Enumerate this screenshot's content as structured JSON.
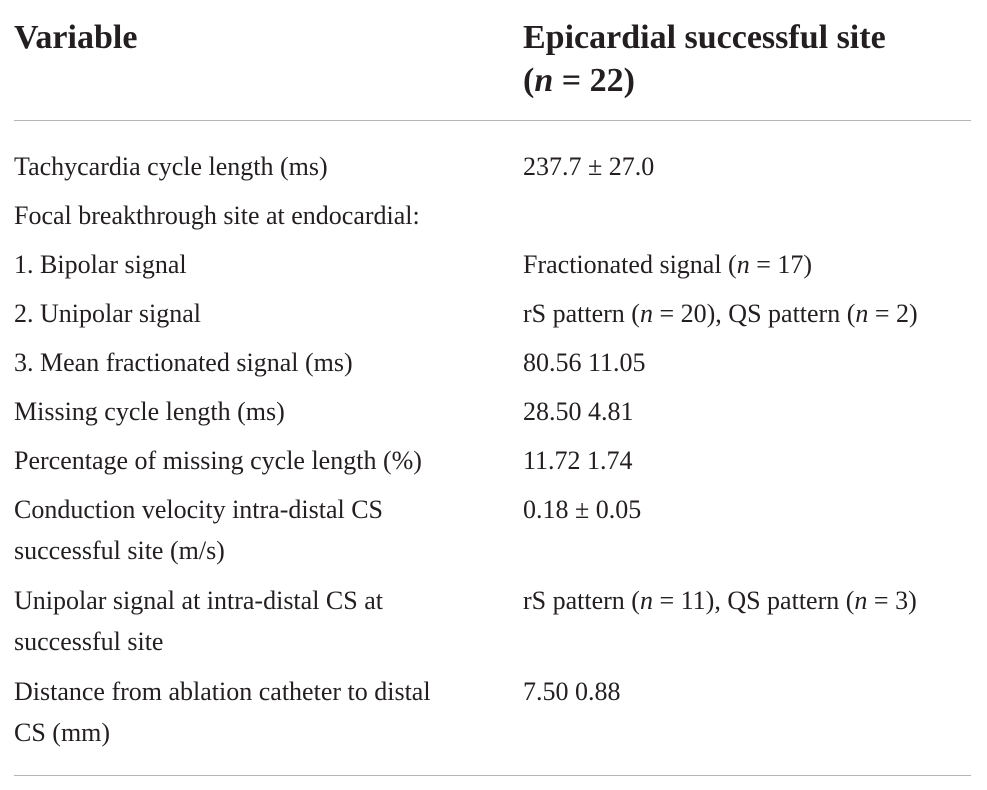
{
  "table": {
    "header": {
      "variable": "Variable",
      "site_line1": "Epicardial successful site",
      "site_line2_open": "(",
      "site_line2_n": "n",
      "site_line2_rest": " = 22)"
    },
    "rows": [
      {
        "variable": "Tachycardia cycle length (ms)",
        "value": "237.7 ± 27.0"
      },
      {
        "variable": "Focal breakthrough site at endocardial:",
        "value": ""
      },
      {
        "variable": "1. Bipolar signal",
        "value": "Fractionated signal (n = 17)"
      },
      {
        "variable": "2. Unipolar signal",
        "value": "rS pattern (n = 20), QS pattern (n = 2)"
      },
      {
        "variable": "3. Mean fractionated signal (ms)",
        "value": "80.56  11.05"
      },
      {
        "variable": "Missing cycle length (ms)",
        "value": "28.50  4.81"
      },
      {
        "variable": "Percentage of missing cycle length (%)",
        "value": "11.72  1.74"
      },
      {
        "variable_line1": "Conduction velocity intra-distal CS",
        "variable_line2": "successful site (m/s)",
        "value": "0.18 ± 0.05"
      },
      {
        "variable_line1": "Unipolar signal at intra-distal CS at",
        "variable_line2": "successful site",
        "value": "rS pattern (n = 11), QS pattern (n = 3)"
      },
      {
        "variable_line1": "Distance from ablation catheter to distal",
        "variable_line2": "CS (mm)",
        "value": "7.50  0.88"
      }
    ]
  }
}
